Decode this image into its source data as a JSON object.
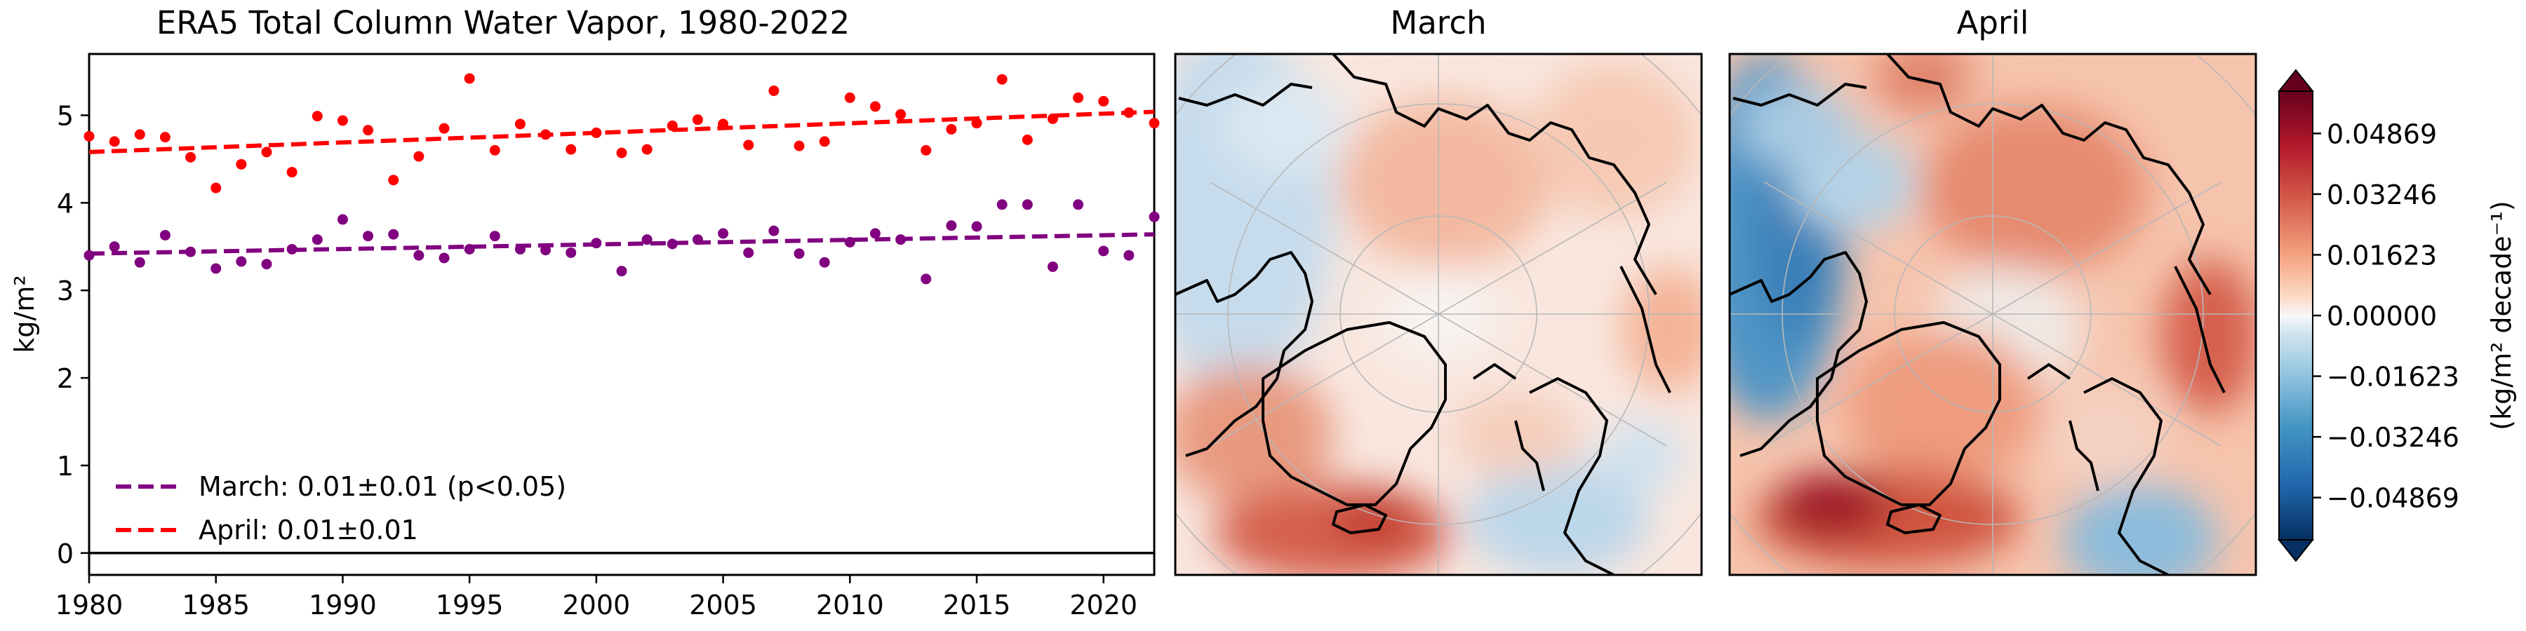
{
  "chart_data": [
    {
      "type": "scatter",
      "title": "ERA5 Total Column Water Vapor, 1980-2022",
      "ylabel": "kg/m²",
      "xlabel": "",
      "xlim": [
        1980,
        2022
      ],
      "ylim": [
        -0.25,
        5.7
      ],
      "xticks": [
        "1980",
        "1985",
        "1990",
        "1995",
        "2000",
        "2005",
        "2010",
        "2015",
        "2020"
      ],
      "yticks": [
        "0",
        "1",
        "2",
        "3",
        "4",
        "5"
      ],
      "grid": false,
      "legend_position": "lower-left",
      "series": [
        {
          "name": "March: 0.01±0.01 (p<0.05)",
          "color": "#800080",
          "x": [
            1980,
            1981,
            1982,
            1983,
            1984,
            1985,
            1986,
            1987,
            1988,
            1989,
            1990,
            1991,
            1992,
            1993,
            1994,
            1995,
            1996,
            1997,
            1998,
            1999,
            2000,
            2001,
            2002,
            2003,
            2004,
            2005,
            2006,
            2007,
            2008,
            2009,
            2010,
            2011,
            2012,
            2013,
            2014,
            2015,
            2016,
            2017,
            2018,
            2019,
            2020,
            2021,
            2022
          ],
          "y": [
            3.4,
            3.5,
            3.32,
            3.63,
            3.44,
            3.25,
            3.33,
            3.3,
            3.47,
            3.58,
            3.81,
            3.62,
            3.64,
            3.4,
            3.37,
            3.47,
            3.62,
            3.47,
            3.46,
            3.43,
            3.54,
            3.22,
            3.58,
            3.53,
            3.58,
            3.65,
            3.43,
            3.68,
            3.42,
            3.32,
            3.55,
            3.65,
            3.58,
            3.13,
            3.74,
            3.73,
            3.98,
            3.98,
            3.27,
            3.98,
            3.45,
            3.4,
            3.84
          ],
          "trend": [
            3.42,
            3.64
          ]
        },
        {
          "name": "April: 0.01±0.01",
          "color": "#ff0000",
          "x": [
            1980,
            1981,
            1982,
            1983,
            1984,
            1985,
            1986,
            1987,
            1988,
            1989,
            1990,
            1991,
            1992,
            1993,
            1994,
            1995,
            1996,
            1997,
            1998,
            1999,
            2000,
            2001,
            2002,
            2003,
            2004,
            2005,
            2006,
            2007,
            2008,
            2009,
            2010,
            2011,
            2012,
            2013,
            2014,
            2015,
            2016,
            2017,
            2018,
            2019,
            2020,
            2021,
            2022
          ],
          "y": [
            4.76,
            4.7,
            4.78,
            4.75,
            4.52,
            4.17,
            4.44,
            4.58,
            4.35,
            4.99,
            4.94,
            4.83,
            4.26,
            4.53,
            4.85,
            5.42,
            4.6,
            4.9,
            4.78,
            4.61,
            4.8,
            4.57,
            4.61,
            4.88,
            4.95,
            4.9,
            4.66,
            5.28,
            4.65,
            4.7,
            5.2,
            5.1,
            5.01,
            4.6,
            4.84,
            4.91,
            5.41,
            4.72,
            4.96,
            5.2,
            5.16,
            5.03,
            4.91
          ],
          "trend": [
            4.58,
            5.04
          ]
        }
      ],
      "zero_line": 0
    },
    {
      "type": "heatmap",
      "title": "March",
      "projection": "north polar stereographic",
      "colormap": "RdBu_r"
    },
    {
      "type": "heatmap",
      "title": "April",
      "projection": "north polar stereographic",
      "colormap": "RdBu_r"
    },
    {
      "type": "colorbar",
      "label": "(kg/m² decade⁻¹)",
      "ticks": [
        "0.04869",
        "0.03246",
        "0.01623",
        "0.00000",
        "−0.01623",
        "−0.03246",
        "−0.04869"
      ],
      "tick_values": [
        0.04869,
        0.03246,
        0.01623,
        0.0,
        -0.01623,
        -0.03246,
        -0.04869
      ],
      "range": [
        -0.06,
        0.06
      ],
      "extend": "both"
    }
  ]
}
